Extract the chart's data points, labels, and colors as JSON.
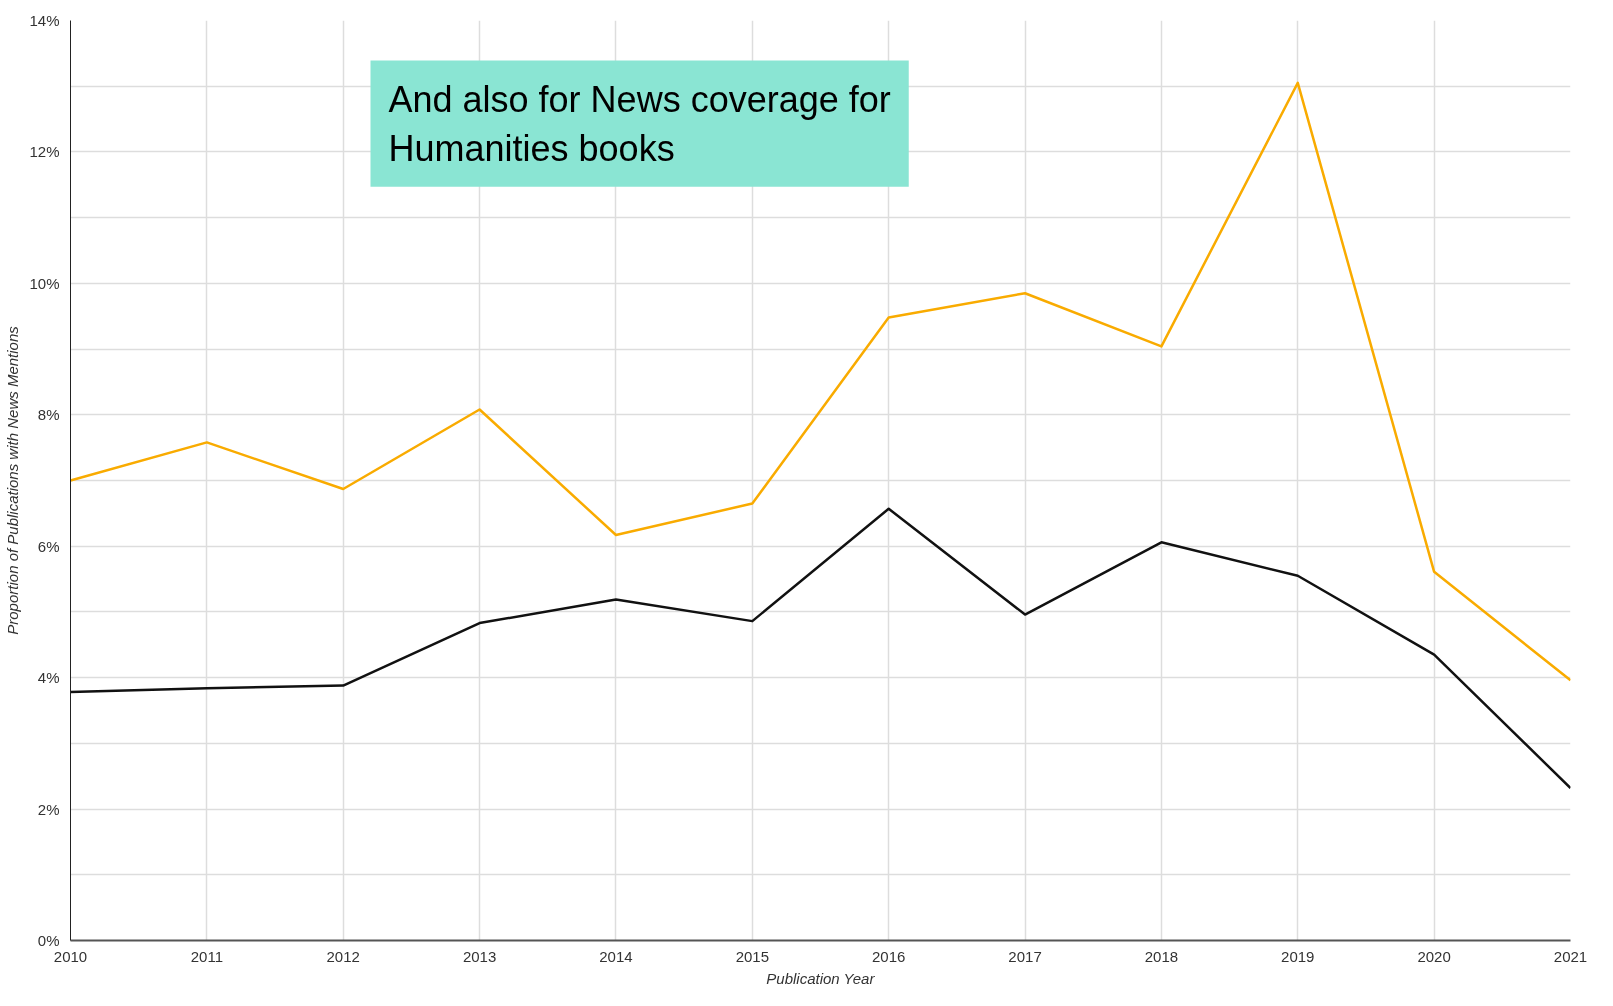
{
  "chart_data": {
    "type": "line",
    "xlabel": "Publication Year",
    "ylabel": "Proportion of Publications with News Mentions",
    "x": [
      2010,
      2011,
      2012,
      2013,
      2014,
      2015,
      2016,
      2017,
      2018,
      2019,
      2020,
      2021
    ],
    "series": [
      {
        "color": "#f9ab00",
        "values": [
          7.0,
          7.58,
          6.87,
          8.08,
          6.17,
          6.65,
          9.48,
          9.85,
          9.04,
          13.05,
          5.61,
          3.96
        ]
      },
      {
        "color": "#111111",
        "values": [
          3.78,
          3.84,
          3.88,
          4.83,
          5.19,
          4.86,
          6.57,
          4.96,
          6.06,
          5.55,
          4.35,
          2.32
        ]
      }
    ],
    "xlim": [
      2010,
      2021
    ],
    "xticks": [
      2010,
      2011,
      2012,
      2013,
      2014,
      2015,
      2016,
      2017,
      2018,
      2019,
      2020,
      2021
    ],
    "ylim": [
      0,
      14
    ],
    "yticks": [
      {
        "value": 0,
        "label": "0%"
      },
      {
        "value": 1,
        "label": null
      },
      {
        "value": 2,
        "label": "2%"
      },
      {
        "value": 3,
        "label": null
      },
      {
        "value": 4,
        "label": "4%"
      },
      {
        "value": 5,
        "label": null
      },
      {
        "value": 6,
        "label": "6%"
      },
      {
        "value": 7,
        "label": null
      },
      {
        "value": 8,
        "label": "8%"
      },
      {
        "value": 9,
        "label": null
      },
      {
        "value": 10,
        "label": "10%"
      },
      {
        "value": 11,
        "label": null
      },
      {
        "value": 12,
        "label": "12%"
      },
      {
        "value": 13,
        "label": null
      },
      {
        "value": 14,
        "label": "14%"
      }
    ],
    "grid": true,
    "line_style": "solid",
    "marker": "none",
    "annotations": [
      "And also for News coverage for\nHumanities books"
    ]
  }
}
